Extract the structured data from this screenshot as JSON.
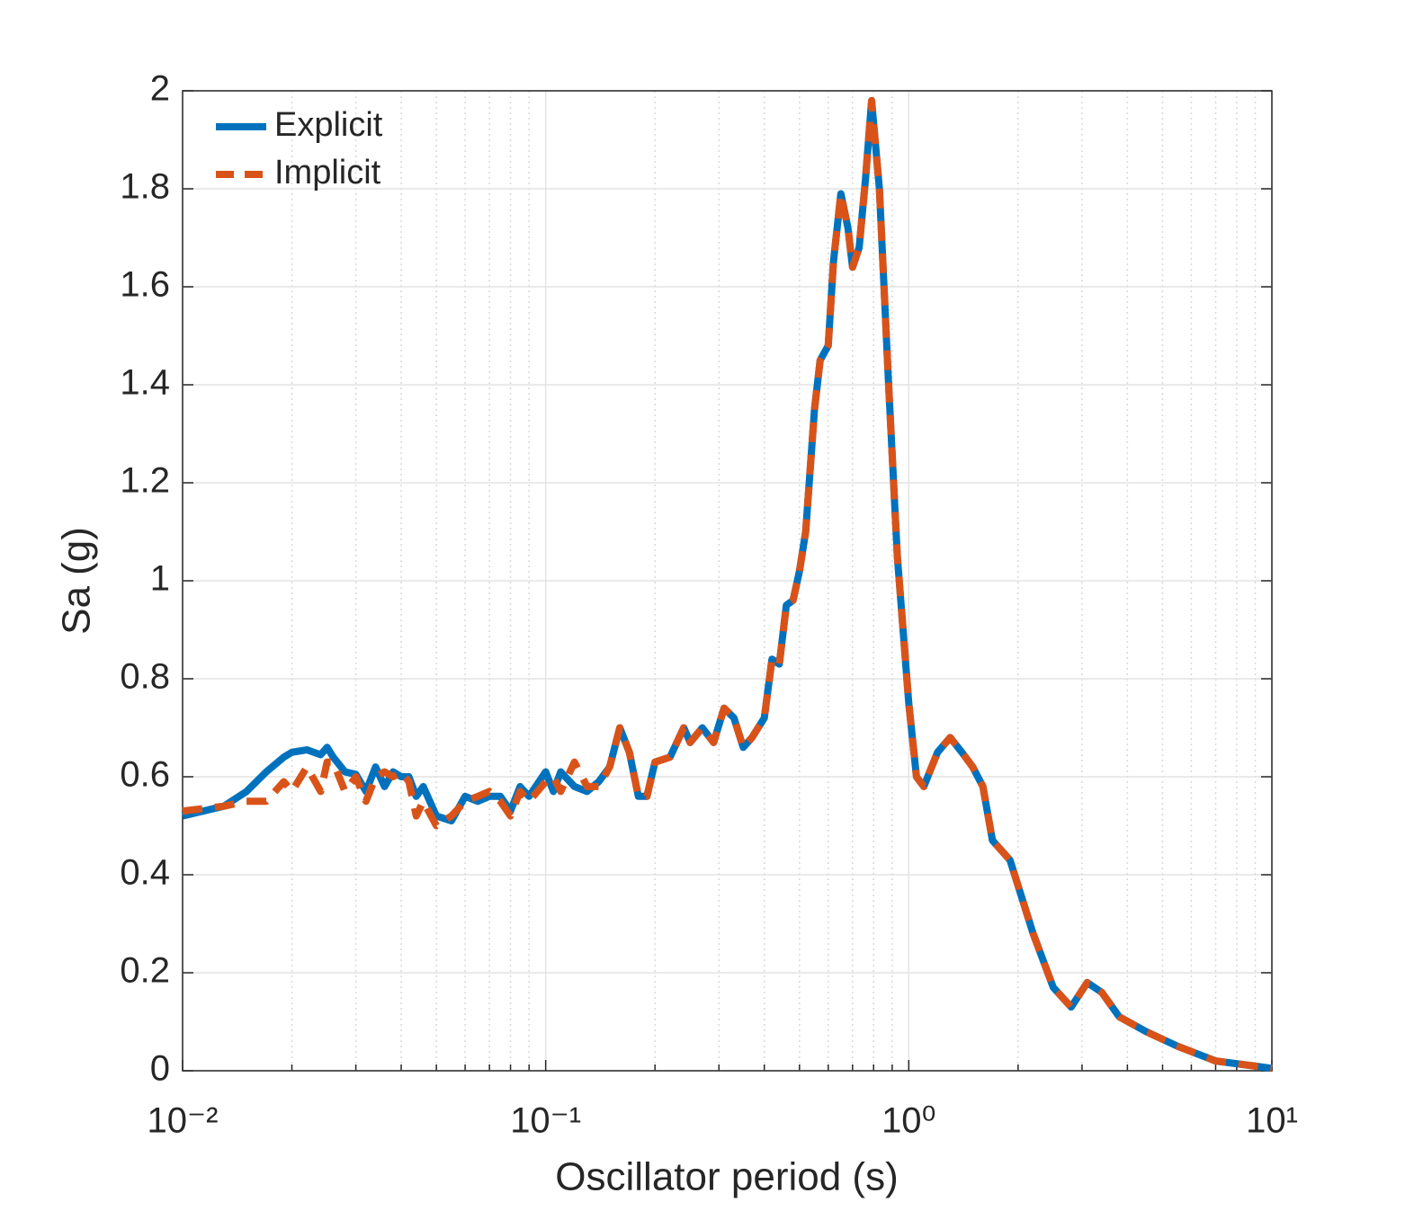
{
  "chart_data": {
    "type": "line",
    "xlabel": "Oscillator period (s)",
    "ylabel": "Sa (g)",
    "xscale": "log",
    "grid": true,
    "legend": "upper left",
    "xlim": [
      0.01,
      10
    ],
    "ylim": [
      0,
      2
    ],
    "xticks": [
      {
        "value": 0.01,
        "label": "10⁻²"
      },
      {
        "value": 0.1,
        "label": "10⁻¹"
      },
      {
        "value": 1,
        "label": "10⁰"
      },
      {
        "value": 10,
        "label": "10¹"
      }
    ],
    "yticks": [
      0,
      0.2,
      0.4,
      0.6,
      0.8,
      1,
      1.2,
      1.4,
      1.6,
      1.8,
      2
    ],
    "x": [
      0.01,
      0.013,
      0.015,
      0.017,
      0.019,
      0.02,
      0.022,
      0.024,
      0.025,
      0.026,
      0.028,
      0.03,
      0.032,
      0.034,
      0.036,
      0.038,
      0.04,
      0.042,
      0.044,
      0.046,
      0.05,
      0.055,
      0.06,
      0.065,
      0.07,
      0.075,
      0.08,
      0.085,
      0.09,
      0.1,
      0.105,
      0.11,
      0.12,
      0.13,
      0.14,
      0.15,
      0.16,
      0.17,
      0.18,
      0.19,
      0.2,
      0.22,
      0.24,
      0.25,
      0.27,
      0.29,
      0.31,
      0.33,
      0.35,
      0.37,
      0.4,
      0.42,
      0.44,
      0.46,
      0.48,
      0.5,
      0.52,
      0.55,
      0.57,
      0.6,
      0.62,
      0.65,
      0.68,
      0.7,
      0.73,
      0.76,
      0.79,
      0.83,
      0.88,
      0.93,
      1,
      1.05,
      1.1,
      1.2,
      1.3,
      1.4,
      1.5,
      1.6,
      1.7,
      1.9,
      2.2,
      2.5,
      2.8,
      3.1,
      3.4,
      3.8,
      4.5,
      5.5,
      7,
      10
    ],
    "series": [
      {
        "name": "Explicit",
        "color": "#0072bd",
        "dash": false,
        "values": [
          0.52,
          0.54,
          0.57,
          0.61,
          0.64,
          0.65,
          0.655,
          0.645,
          0.66,
          0.64,
          0.61,
          0.605,
          0.57,
          0.62,
          0.58,
          0.61,
          0.6,
          0.6,
          0.56,
          0.58,
          0.52,
          0.51,
          0.56,
          0.55,
          0.56,
          0.56,
          0.53,
          0.58,
          0.56,
          0.61,
          0.57,
          0.61,
          0.58,
          0.57,
          0.59,
          0.62,
          0.7,
          0.65,
          0.56,
          0.56,
          0.63,
          0.64,
          0.7,
          0.67,
          0.7,
          0.67,
          0.74,
          0.72,
          0.66,
          0.68,
          0.72,
          0.84,
          0.83,
          0.95,
          0.96,
          1.02,
          1.1,
          1.35,
          1.45,
          1.48,
          1.65,
          1.79,
          1.72,
          1.64,
          1.68,
          1.82,
          1.98,
          1.8,
          1.4,
          1.05,
          0.75,
          0.6,
          0.58,
          0.65,
          0.68,
          0.65,
          0.62,
          0.58,
          0.47,
          0.43,
          0.28,
          0.17,
          0.13,
          0.18,
          0.16,
          0.11,
          0.08,
          0.05,
          0.02,
          0.005
        ]
      },
      {
        "name": "Implicit",
        "color": "#d95319",
        "dash": true,
        "values": [
          0.53,
          0.54,
          0.55,
          0.55,
          0.59,
          0.57,
          0.62,
          0.57,
          0.63,
          0.63,
          0.57,
          0.6,
          0.55,
          0.6,
          0.61,
          0.6,
          0.61,
          0.59,
          0.52,
          0.55,
          0.5,
          0.52,
          0.55,
          0.56,
          0.57,
          0.55,
          0.52,
          0.57,
          0.55,
          0.59,
          0.6,
          0.57,
          0.63,
          0.58,
          0.58,
          0.62,
          0.7,
          0.65,
          0.56,
          0.56,
          0.63,
          0.64,
          0.7,
          0.67,
          0.7,
          0.67,
          0.74,
          0.72,
          0.66,
          0.68,
          0.72,
          0.84,
          0.83,
          0.95,
          0.96,
          1.02,
          1.1,
          1.35,
          1.45,
          1.48,
          1.65,
          1.79,
          1.72,
          1.64,
          1.68,
          1.82,
          1.98,
          1.8,
          1.4,
          1.05,
          0.75,
          0.6,
          0.58,
          0.65,
          0.68,
          0.65,
          0.62,
          0.58,
          0.47,
          0.43,
          0.28,
          0.17,
          0.13,
          0.18,
          0.16,
          0.11,
          0.08,
          0.05,
          0.02,
          0.005
        ]
      }
    ]
  }
}
